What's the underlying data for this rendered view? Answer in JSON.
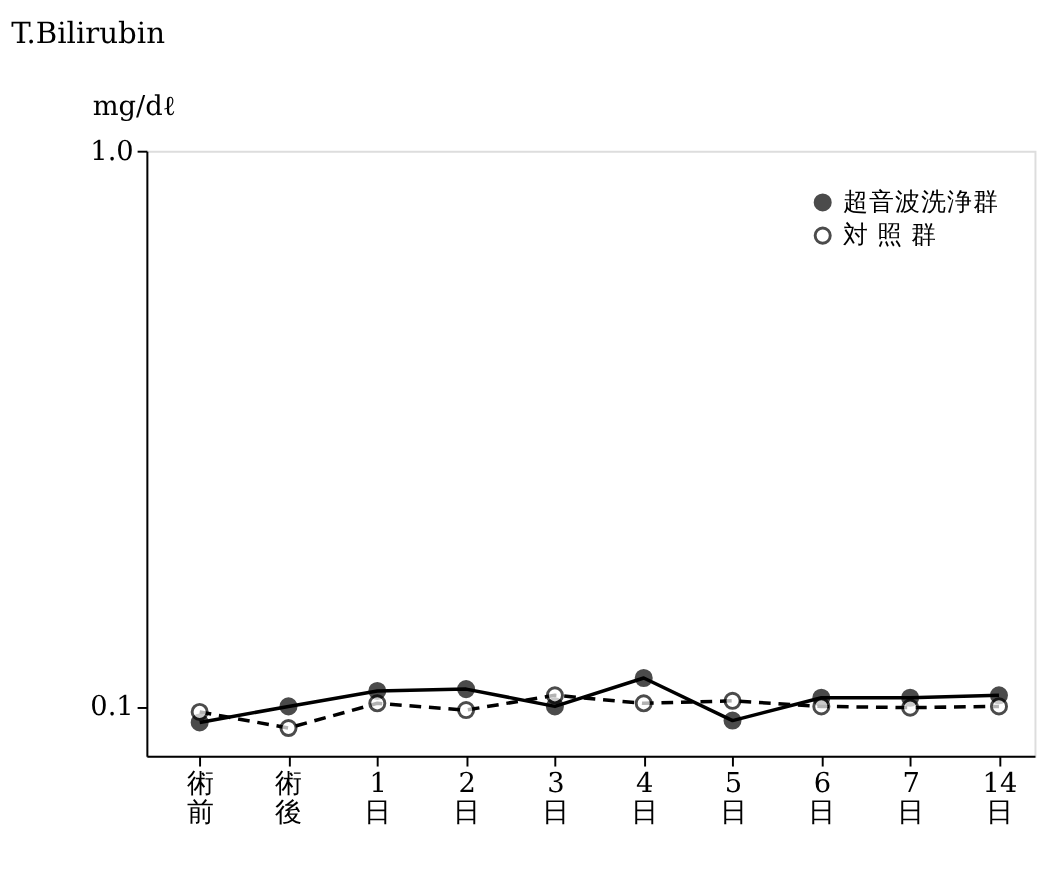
{
  "chart_data": {
    "type": "line",
    "title": "T.Bilirubin",
    "ylabel": "mg/dℓ",
    "categories": [
      "術前",
      "術後",
      "1日",
      "2日",
      "3日",
      "4日",
      "5日",
      "6日",
      "7日",
      "14日"
    ],
    "series": [
      {
        "name": "超音波洗浄群",
        "color": "#000000",
        "line_style": "solid",
        "values": [
          0.074,
          0.1,
          0.125,
          0.128,
          0.1,
          0.146,
          0.077,
          0.114,
          0.114,
          0.118
        ]
      },
      {
        "name": "対 照 群",
        "color": "#000000",
        "line_style": "dashed",
        "values": [
          0.091,
          0.065,
          0.105,
          0.094,
          0.118,
          0.105,
          0.109,
          0.1,
          0.098,
          0.1
        ]
      }
    ],
    "ylim": [
      0.02,
      1.0
    ],
    "yticks": [
      0.1,
      {
        "value": 1.0,
        "label": "1.0"
      }
    ],
    "marker": "circle",
    "grid": false,
    "legend": "top right"
  }
}
